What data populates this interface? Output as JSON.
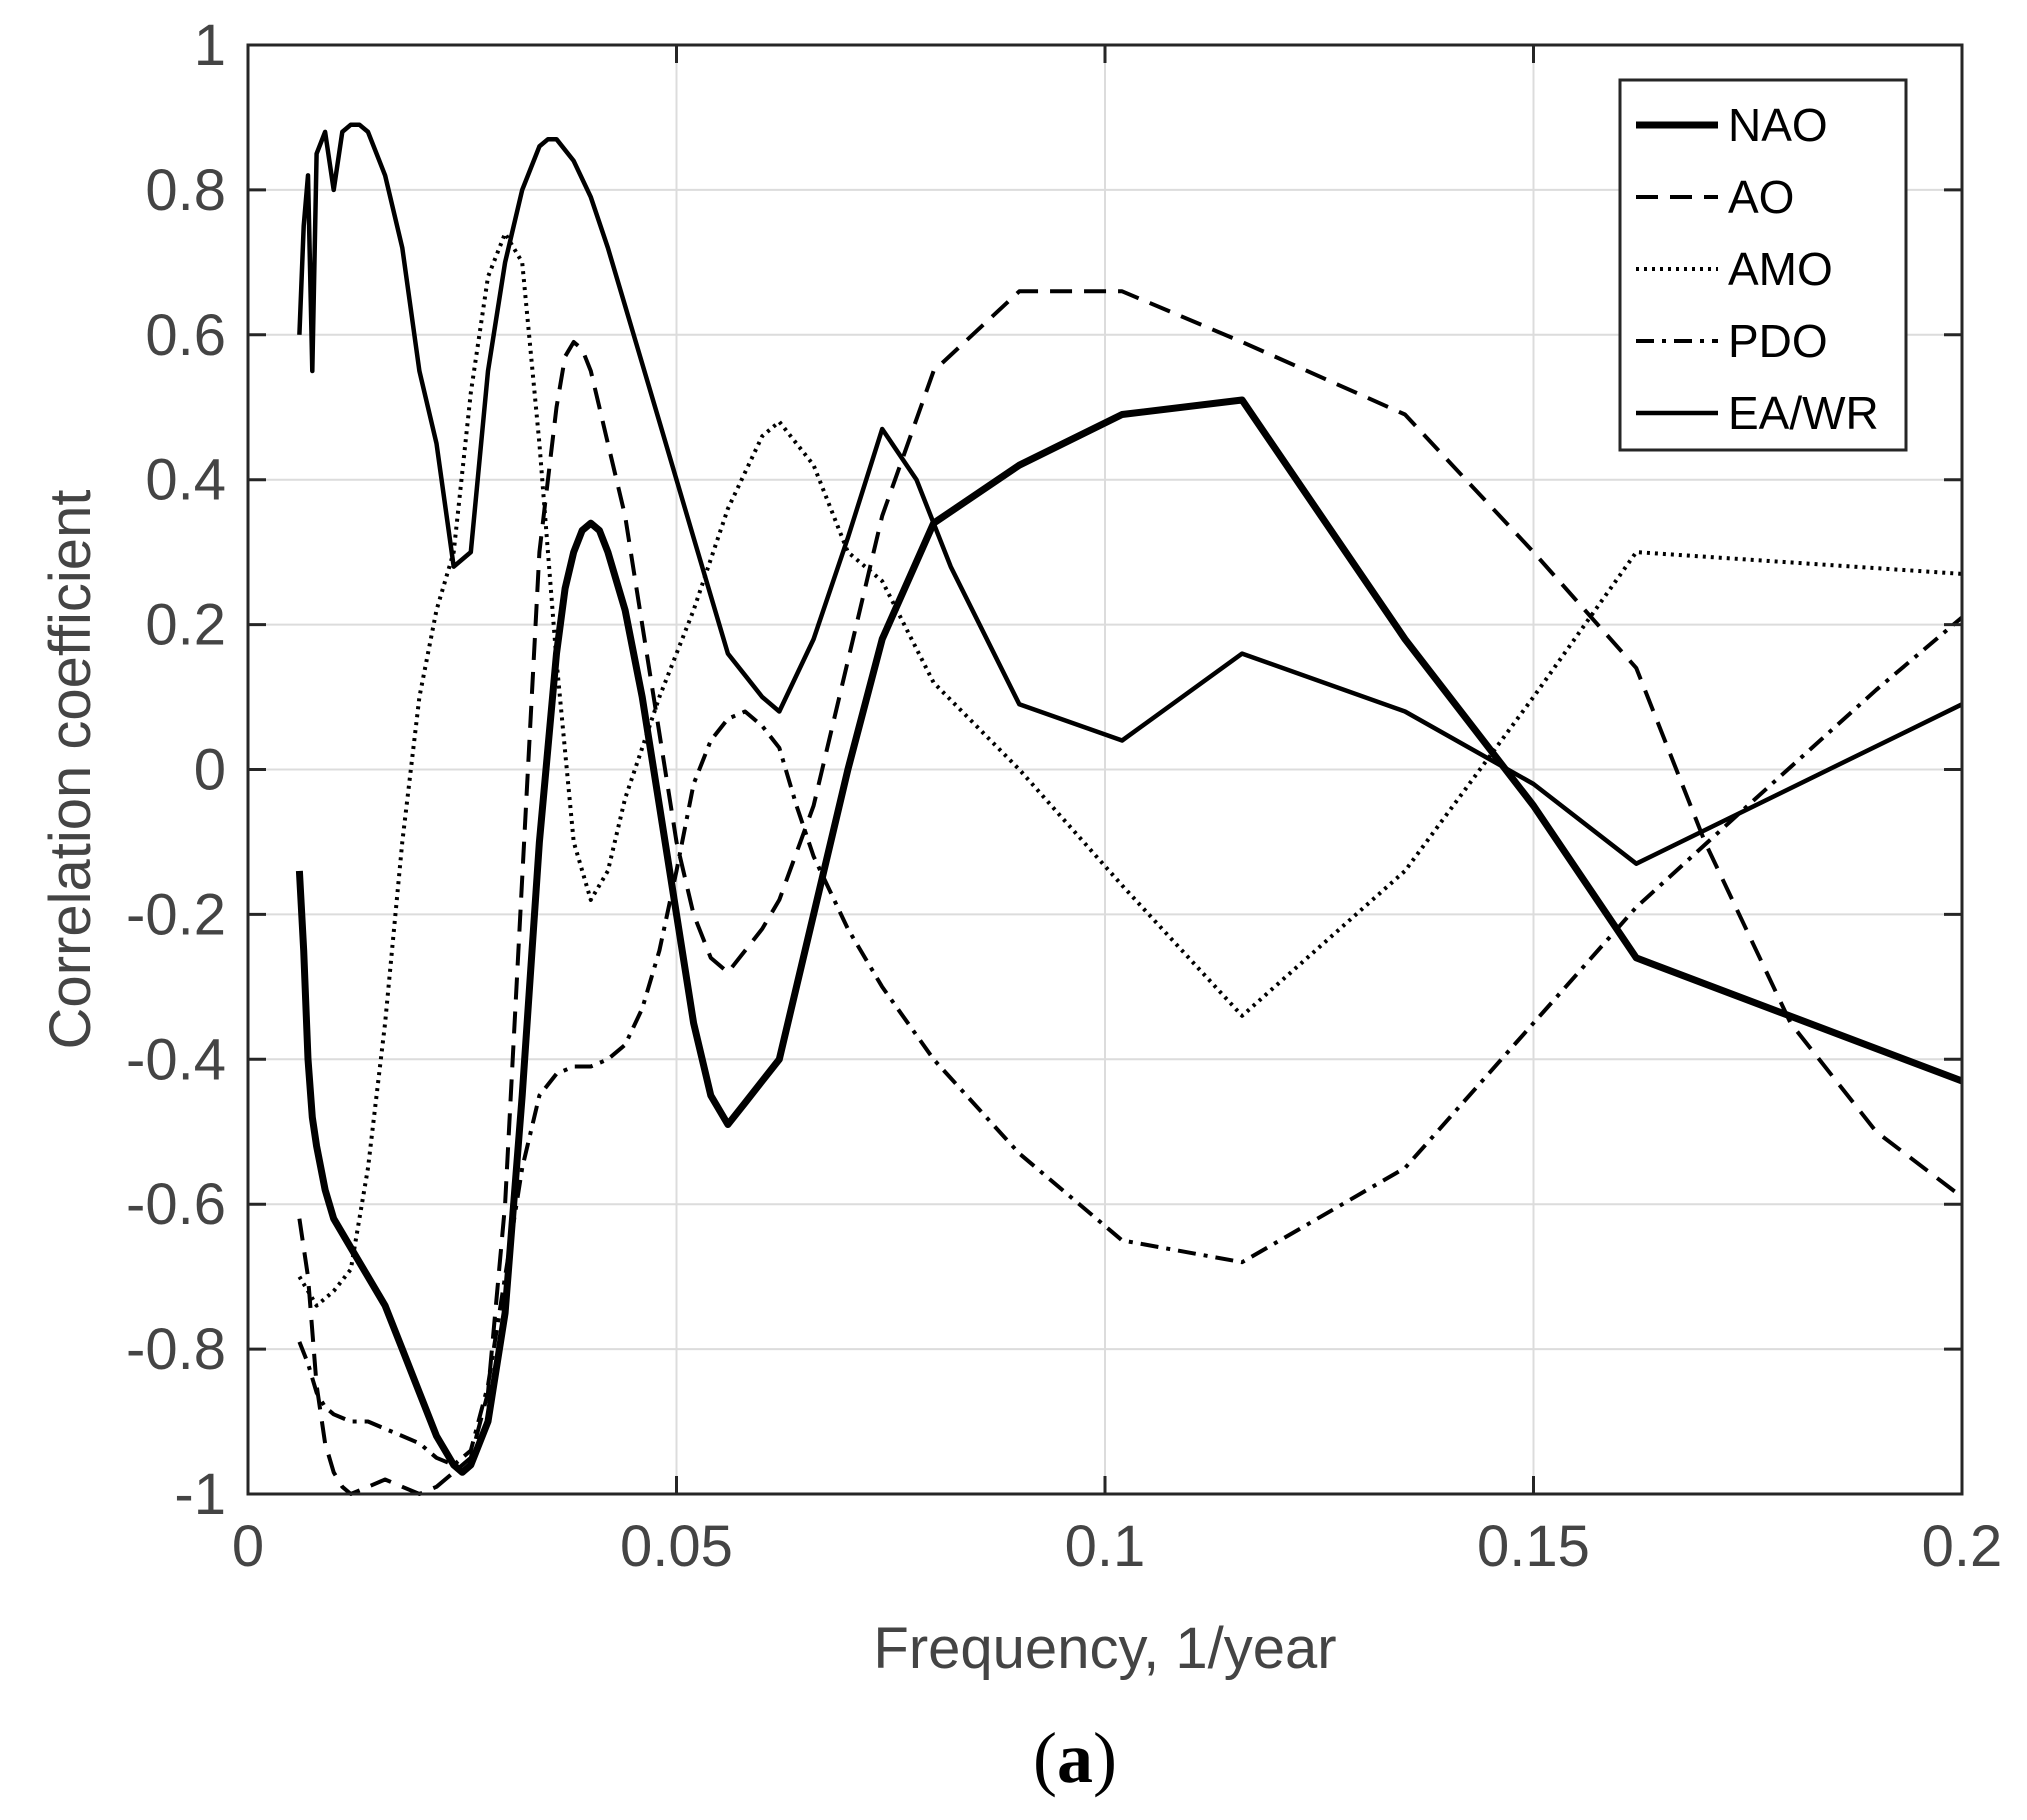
{
  "chart_data": {
    "type": "line",
    "title": "",
    "xlabel": "Frequency, 1/year",
    "ylabel": "Correlation coefficient",
    "xlim": [
      0,
      0.2
    ],
    "ylim": [
      -1,
      1
    ],
    "xticks": [
      0,
      0.05,
      0.1,
      0.15,
      0.2
    ],
    "xtick_labels": [
      "0",
      "0.05",
      "0.1",
      "0.15",
      "0.2"
    ],
    "yticks": [
      -1,
      -0.8,
      -0.6,
      -0.4,
      -0.2,
      0,
      0.2,
      0.4,
      0.6,
      0.8,
      1
    ],
    "ytick_labels": [
      "-1",
      "-0.8",
      "-0.6",
      "-0.4",
      "-0.2",
      "0",
      "0.2",
      "0.4",
      "0.6",
      "0.8",
      "1"
    ],
    "grid": true,
    "legend_position": "top-right",
    "panel_label": {
      "open": "(",
      "letter": "a",
      "close": ")"
    },
    "series": [
      {
        "name": "NAO",
        "style": "solid-thick",
        "color": "#000000",
        "x": [
          0.006,
          0.0065,
          0.007,
          0.0075,
          0.008,
          0.009,
          0.01,
          0.012,
          0.014,
          0.016,
          0.018,
          0.02,
          0.022,
          0.024,
          0.025,
          0.026,
          0.028,
          0.03,
          0.032,
          0.034,
          0.036,
          0.037,
          0.038,
          0.039,
          0.04,
          0.041,
          0.042,
          0.044,
          0.046,
          0.048,
          0.05,
          0.052,
          0.054,
          0.056,
          0.058,
          0.06,
          0.062,
          0.066,
          0.07,
          0.074,
          0.08,
          0.09,
          0.102,
          0.116,
          0.135,
          0.15,
          0.162,
          0.2
        ],
        "y": [
          -0.14,
          -0.25,
          -0.4,
          -0.48,
          -0.52,
          -0.58,
          -0.62,
          -0.66,
          -0.7,
          -0.74,
          -0.8,
          -0.86,
          -0.92,
          -0.96,
          -0.97,
          -0.96,
          -0.9,
          -0.75,
          -0.45,
          -0.1,
          0.16,
          0.25,
          0.3,
          0.33,
          0.34,
          0.33,
          0.3,
          0.22,
          0.1,
          -0.05,
          -0.2,
          -0.35,
          -0.45,
          -0.49,
          -0.46,
          -0.43,
          -0.4,
          -0.2,
          0.0,
          0.18,
          0.34,
          0.42,
          0.49,
          0.51,
          0.18,
          -0.05,
          -0.26,
          -0.43
        ]
      },
      {
        "name": "AO",
        "style": "dashed",
        "color": "#000000",
        "x": [
          0.006,
          0.007,
          0.008,
          0.009,
          0.01,
          0.011,
          0.012,
          0.014,
          0.016,
          0.018,
          0.02,
          0.022,
          0.024,
          0.026,
          0.028,
          0.03,
          0.032,
          0.034,
          0.036,
          0.037,
          0.038,
          0.039,
          0.04,
          0.041,
          0.042,
          0.044,
          0.046,
          0.048,
          0.05,
          0.052,
          0.054,
          0.056,
          0.058,
          0.06,
          0.062,
          0.066,
          0.07,
          0.074,
          0.08,
          0.09,
          0.102,
          0.116,
          0.135,
          0.15,
          0.162,
          0.17,
          0.18,
          0.19,
          0.2
        ],
        "y": [
          -0.62,
          -0.7,
          -0.85,
          -0.93,
          -0.97,
          -0.99,
          -1.0,
          -0.99,
          -0.98,
          -0.99,
          -1.0,
          -0.99,
          -0.97,
          -0.95,
          -0.86,
          -0.6,
          -0.15,
          0.3,
          0.5,
          0.57,
          0.59,
          0.58,
          0.55,
          0.5,
          0.45,
          0.35,
          0.2,
          0.05,
          -0.1,
          -0.2,
          -0.26,
          -0.28,
          -0.25,
          -0.22,
          -0.18,
          -0.05,
          0.15,
          0.35,
          0.55,
          0.66,
          0.66,
          0.59,
          0.49,
          0.3,
          0.14,
          -0.1,
          -0.35,
          -0.5,
          -0.59
        ]
      },
      {
        "name": "AMO",
        "style": "dotted",
        "color": "#000000",
        "x": [
          0.006,
          0.007,
          0.008,
          0.009,
          0.01,
          0.012,
          0.014,
          0.016,
          0.018,
          0.02,
          0.022,
          0.024,
          0.026,
          0.028,
          0.03,
          0.032,
          0.034,
          0.036,
          0.038,
          0.04,
          0.042,
          0.044,
          0.048,
          0.052,
          0.056,
          0.06,
          0.062,
          0.066,
          0.07,
          0.074,
          0.08,
          0.09,
          0.102,
          0.116,
          0.135,
          0.15,
          0.162,
          0.2
        ],
        "y": [
          -0.7,
          -0.72,
          -0.74,
          -0.73,
          -0.72,
          -0.69,
          -0.55,
          -0.35,
          -0.1,
          0.1,
          0.22,
          0.3,
          0.52,
          0.68,
          0.74,
          0.7,
          0.45,
          0.15,
          -0.1,
          -0.18,
          -0.14,
          -0.04,
          0.1,
          0.22,
          0.36,
          0.46,
          0.48,
          0.42,
          0.3,
          0.26,
          0.12,
          0.0,
          -0.16,
          -0.34,
          -0.14,
          0.1,
          0.3,
          0.27
        ]
      },
      {
        "name": "PDO",
        "style": "dash-dot",
        "color": "#000000",
        "x": [
          0.006,
          0.007,
          0.008,
          0.009,
          0.01,
          0.012,
          0.014,
          0.016,
          0.018,
          0.02,
          0.022,
          0.024,
          0.026,
          0.028,
          0.03,
          0.032,
          0.034,
          0.036,
          0.038,
          0.04,
          0.042,
          0.044,
          0.046,
          0.048,
          0.05,
          0.052,
          0.054,
          0.056,
          0.058,
          0.06,
          0.062,
          0.064,
          0.066,
          0.07,
          0.074,
          0.08,
          0.09,
          0.102,
          0.116,
          0.135,
          0.15,
          0.162,
          0.175,
          0.19,
          0.2
        ],
        "y": [
          -0.79,
          -0.82,
          -0.86,
          -0.88,
          -0.89,
          -0.9,
          -0.9,
          -0.91,
          -0.92,
          -0.93,
          -0.95,
          -0.96,
          -0.94,
          -0.85,
          -0.7,
          -0.55,
          -0.45,
          -0.42,
          -0.41,
          -0.41,
          -0.4,
          -0.38,
          -0.33,
          -0.25,
          -0.14,
          -0.02,
          0.04,
          0.07,
          0.08,
          0.06,
          0.03,
          -0.05,
          -0.12,
          -0.22,
          -0.3,
          -0.4,
          -0.53,
          -0.65,
          -0.68,
          -0.55,
          -0.35,
          -0.19,
          -0.05,
          0.11,
          0.21
        ]
      },
      {
        "name": "EA/WR",
        "style": "solid",
        "color": "#000000",
        "x": [
          0.006,
          0.0065,
          0.007,
          0.0075,
          0.008,
          0.009,
          0.01,
          0.011,
          0.012,
          0.013,
          0.014,
          0.016,
          0.018,
          0.02,
          0.022,
          0.024,
          0.026,
          0.028,
          0.03,
          0.032,
          0.034,
          0.035,
          0.036,
          0.038,
          0.04,
          0.042,
          0.044,
          0.048,
          0.052,
          0.056,
          0.058,
          0.06,
          0.062,
          0.066,
          0.07,
          0.074,
          0.078,
          0.082,
          0.09,
          0.102,
          0.116,
          0.135,
          0.15,
          0.162,
          0.2
        ],
        "y": [
          0.6,
          0.75,
          0.82,
          0.55,
          0.85,
          0.88,
          0.8,
          0.88,
          0.89,
          0.89,
          0.88,
          0.82,
          0.72,
          0.55,
          0.45,
          0.28,
          0.3,
          0.55,
          0.7,
          0.8,
          0.86,
          0.87,
          0.87,
          0.84,
          0.79,
          0.72,
          0.64,
          0.48,
          0.32,
          0.16,
          0.13,
          0.1,
          0.08,
          0.18,
          0.32,
          0.47,
          0.4,
          0.28,
          0.09,
          0.04,
          0.16,
          0.08,
          -0.02,
          -0.13,
          0.09
        ]
      }
    ]
  }
}
